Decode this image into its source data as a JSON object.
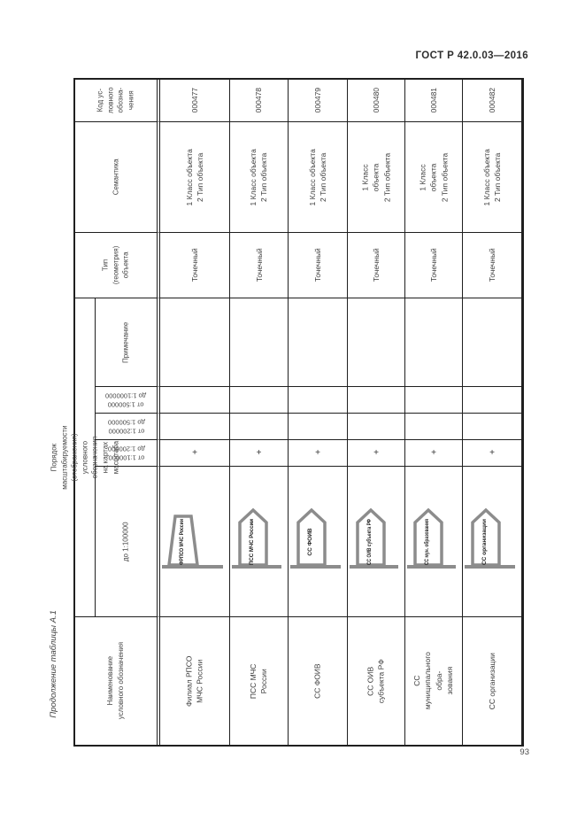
{
  "page": {
    "standard_number": "ГОСТ Р 42.0.03—2016",
    "continuation_caption": "Продолжение таблицы А.1",
    "page_number": "93"
  },
  "colors": {
    "symbol_gray": "#8c8c8c",
    "grid_line": "#1f1f1f"
  },
  "table": {
    "headers": {
      "code_lines": [
        "Код ус-",
        "ловного",
        "обозна-",
        "чения"
      ],
      "semantics": "Семантика",
      "geometry_lines": [
        "Тип",
        "(геометрия)",
        "объекта"
      ],
      "scalability_lines": [
        "Порядок масштабируемости (отображения) условного обозначения",
        "на картах масштаба"
      ],
      "note": "Примечание",
      "scale_500k_1m_lines": [
        "от 1:500000",
        "до 1:1000000"
      ],
      "scale_200k_500k_lines": [
        "от 1:200000",
        "до 1:500000"
      ],
      "scale_100k_200k_lines": [
        "от 1:100000",
        "до 1:200000"
      ],
      "scale_under_100k": "до 1:100000",
      "name_lines": [
        "Наименование",
        "условного обозначения"
      ]
    },
    "rows": [
      {
        "code": "000477",
        "semantics_lines": [
          "1 Класс объекта",
          "2 Тип объекта"
        ],
        "geometry": "Точечный",
        "note": "",
        "scale_500k_1m": "",
        "scale_200k_500k": "",
        "scale_100k_200k": "+",
        "symbol": {
          "shape": "trapezoid",
          "label": "ФРПСО МЧС России"
        },
        "name_lines": [
          "Филиал РПСО МЧС России"
        ]
      },
      {
        "code": "000478",
        "semantics_lines": [
          "1 Класс объекта",
          "2 Тип объекта"
        ],
        "geometry": "Точечный",
        "note": "",
        "scale_500k_1m": "",
        "scale_200k_500k": "",
        "scale_100k_200k": "+",
        "symbol": {
          "shape": "pentagon",
          "label": "ПСС МЧС России"
        },
        "name_lines": [
          "ПСС МЧС России"
        ]
      },
      {
        "code": "000479",
        "semantics_lines": [
          "1 Класс объекта",
          "2 Тип объекта"
        ],
        "geometry": "Точечный",
        "note": "",
        "scale_500k_1m": "",
        "scale_200k_500k": "",
        "scale_100k_200k": "+",
        "symbol": {
          "shape": "pentagon",
          "label": "СС ФОИВ"
        },
        "name_lines": [
          "СС ФОИВ"
        ]
      },
      {
        "code": "000480",
        "semantics_lines": [
          "1 Класс объекта",
          "2 Тип объекта"
        ],
        "geometry": "Точечный",
        "note": "",
        "scale_500k_1m": "",
        "scale_200k_500k": "",
        "scale_100k_200k": "+",
        "symbol": {
          "shape": "pentagon",
          "label": "СС ОИВ субъекта РФ"
        },
        "name_lines": [
          "СС ОИВ субъекта РФ"
        ]
      },
      {
        "code": "000481",
        "semantics_lines": [
          "1 Класс объекта",
          "2 Тип объекта"
        ],
        "geometry": "Точечный",
        "note": "",
        "scale_500k_1m": "",
        "scale_200k_500k": "",
        "scale_100k_200k": "+",
        "symbol": {
          "shape": "pentagon",
          "label": "СС мун. образования"
        },
        "name_lines": [
          "СС муниципального обра-",
          "зования"
        ]
      },
      {
        "code": "000482",
        "semantics_lines": [
          "1 Класс объекта",
          "2 Тип объекта"
        ],
        "geometry": "Точечный",
        "note": "",
        "scale_500k_1m": "",
        "scale_200k_500k": "",
        "scale_100k_200k": "+",
        "symbol": {
          "shape": "pentagon",
          "label": "СС организации"
        },
        "name_lines": [
          "СС организации"
        ]
      }
    ]
  }
}
